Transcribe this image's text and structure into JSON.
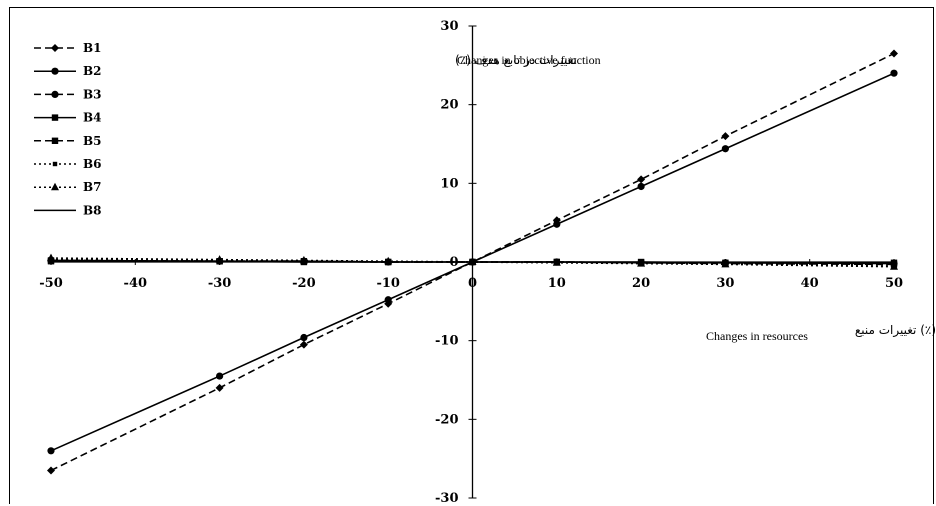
{
  "chart_data": {
    "type": "line",
    "title": "",
    "ylabel_fa": "تغییرات در تابع هدف (٪)",
    "ylabel": "Changes in objective function",
    "xlabel_fa": "تغییرات منبع (٪)",
    "xlabel": "Changes in resources",
    "x": [
      -50,
      -30,
      -20,
      -10,
      0,
      10,
      20,
      30,
      50
    ],
    "xlim": [
      -50,
      50
    ],
    "ylim": [
      -30,
      30
    ],
    "x_ticks": [
      "-50",
      "-40",
      "-30",
      "-20",
      "-10",
      "0",
      "10",
      "20",
      "30",
      "40",
      "50"
    ],
    "y_ticks": [
      "30",
      "20",
      "10",
      "0",
      "-10",
      "-20",
      "-30"
    ],
    "grid": false,
    "legend_position": "top-left",
    "series": [
      {
        "name": "B1",
        "style": "dashed",
        "marker": "diamond",
        "values": [
          -26.5,
          -16,
          -10.5,
          -5.3,
          0,
          5.3,
          10.5,
          16,
          26.5
        ]
      },
      {
        "name": "B2",
        "style": "solid",
        "marker": "circle",
        "values": [
          -24,
          -14.5,
          -9.6,
          -4.8,
          0,
          4.8,
          9.6,
          14.4,
          24
        ]
      },
      {
        "name": "B3",
        "style": "dashed",
        "marker": "circle",
        "values": [
          0.2,
          0.1,
          0.1,
          0,
          0,
          0,
          -0.1,
          -0.1,
          -0.2
        ]
      },
      {
        "name": "B4",
        "style": "solid",
        "marker": "square",
        "values": [
          0.1,
          0.1,
          0,
          0,
          0,
          0,
          0,
          -0.1,
          -0.1
        ]
      },
      {
        "name": "B5",
        "style": "dashed",
        "marker": "square",
        "values": [
          0.2,
          0.1,
          0.1,
          0,
          0,
          0,
          -0.1,
          -0.2,
          -0.3
        ]
      },
      {
        "name": "B6",
        "style": "dotted",
        "marker": "small-square",
        "values": [
          0.3,
          0.2,
          0.1,
          0,
          0,
          0,
          -0.1,
          -0.2,
          -0.4
        ]
      },
      {
        "name": "B7",
        "style": "dotted",
        "marker": "triangle",
        "values": [
          0.5,
          0.3,
          0.2,
          0.1,
          0,
          -0.1,
          -0.2,
          -0.3,
          -0.6
        ]
      },
      {
        "name": "B8",
        "style": "solid",
        "marker": "none",
        "values": [
          0.2,
          0.1,
          0.1,
          0,
          0,
          0,
          -0.1,
          -0.1,
          -0.2
        ]
      }
    ]
  }
}
